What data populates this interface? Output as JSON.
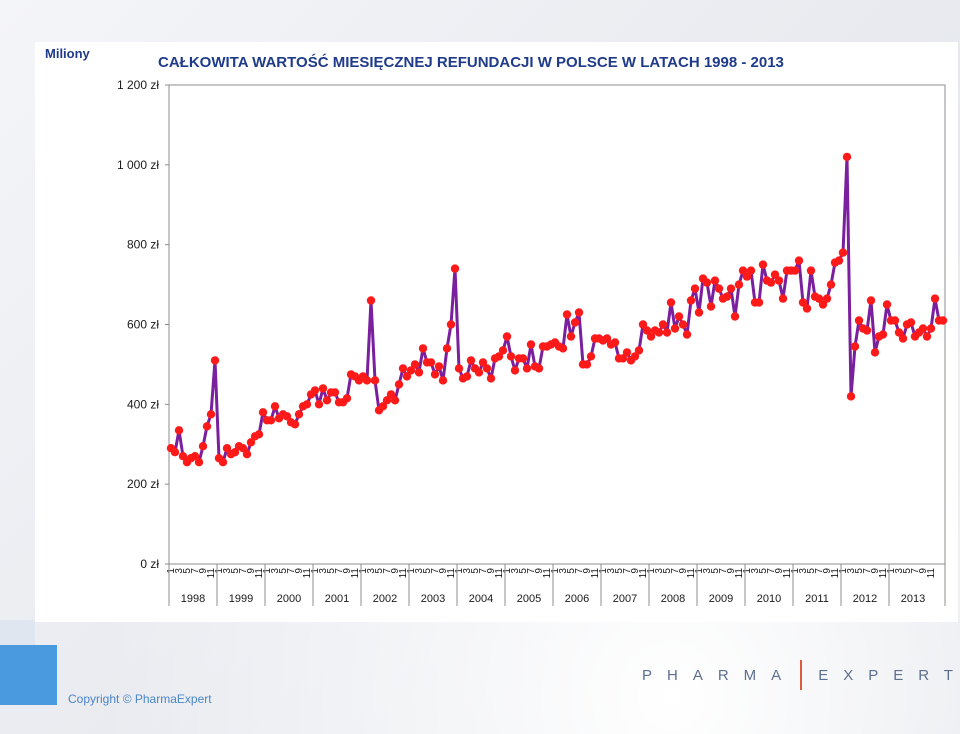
{
  "unit_label": "Miliony",
  "logo": {
    "left": "PHARMA",
    "right": "EXPERT"
  },
  "copyright": "Copyright © PharmaExpert",
  "colors": {
    "line": "#7a1f9e",
    "marker": "#ff1a1a",
    "title": "#1f3b8a",
    "accent": "#4a9ae0"
  },
  "chart_data": {
    "type": "line",
    "title": "CAŁKOWITA WARTOŚĆ MIESIĘCZNEJ REFUNDACJI W POLSCE W LATACH 1998 - 2013",
    "ylim": [
      0,
      1200
    ],
    "yticks": [
      0,
      200,
      400,
      600,
      800,
      1000,
      1200
    ],
    "ytick_labels": [
      "0 zł",
      "200 zł",
      "400 zł",
      "600 zł",
      "800 zł",
      "1 000 zł",
      "1 200 zł"
    ],
    "grid": false,
    "x_month_ticks": [
      "1",
      "3",
      "5",
      "7",
      "9",
      "11"
    ],
    "years": [
      "1998",
      "1999",
      "2000",
      "2001",
      "2002",
      "2003",
      "2004",
      "2005",
      "2006",
      "2007",
      "2008",
      "2009",
      "2010",
      "2011",
      "2012",
      "2013"
    ],
    "series": [
      {
        "values": [
          290,
          280,
          335,
          270,
          255,
          265,
          270,
          255,
          295,
          345,
          375,
          510,
          265,
          255,
          290,
          275,
          280,
          295,
          290,
          275,
          305,
          320,
          325,
          380,
          360,
          360,
          395,
          365,
          375,
          370,
          355,
          350,
          375,
          395,
          400,
          425,
          435,
          400,
          440,
          410,
          430,
          430,
          405,
          405,
          415,
          475,
          470,
          460,
          470,
          460,
          660,
          460,
          385,
          395,
          410,
          425,
          410,
          450,
          490,
          470,
          485,
          500,
          480,
          540,
          505,
          505,
          475,
          495,
          460,
          540,
          600,
          740,
          490,
          465,
          470,
          510,
          490,
          480,
          505,
          490,
          465,
          515,
          520,
          535,
          570,
          520,
          485,
          515,
          515,
          490,
          550,
          495,
          490,
          545,
          545,
          550,
          555,
          545,
          540,
          625,
          570,
          605,
          630,
          500,
          500,
          520,
          565,
          565,
          560,
          565,
          550,
          555,
          515,
          515,
          530,
          510,
          520,
          535,
          600,
          585,
          570,
          585,
          580,
          600,
          580,
          655,
          590,
          620,
          600,
          575,
          660,
          690,
          630,
          715,
          705,
          645,
          710,
          690,
          665,
          670,
          690,
          620,
          700,
          735,
          720,
          735,
          655,
          655,
          750,
          710,
          705,
          725,
          710,
          665,
          735,
          735,
          735,
          760,
          655,
          640,
          735,
          670,
          665,
          650,
          665,
          700,
          755,
          760,
          780,
          1020,
          420,
          545,
          610,
          590,
          585,
          660,
          530,
          570,
          575,
          650,
          610,
          610,
          580,
          565,
          600,
          605,
          570,
          580,
          590,
          570,
          590,
          665,
          610,
          610
        ]
      }
    ]
  }
}
